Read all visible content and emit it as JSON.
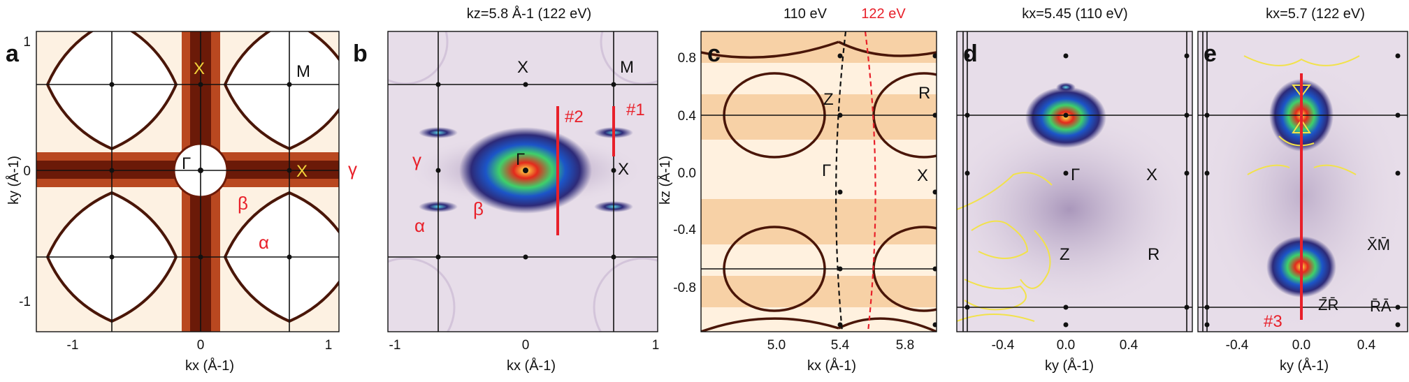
{
  "figure": {
    "panels": [
      {
        "id": "a",
        "letter": "a",
        "title": "",
        "xlabel": "kx (Å-1)",
        "ylabel": "ky (Å-1)",
        "xticks": [
          "-1",
          "0",
          "1"
        ],
        "yticks": [
          "1",
          "0",
          "-1"
        ],
        "labels": [
          "X",
          "M",
          "Γ",
          "X",
          "γ",
          "β",
          "α"
        ]
      },
      {
        "id": "b",
        "letter": "b",
        "title": "kz=5.8 Å-1 (122 eV)",
        "xlabel": "kx (Å-1)",
        "ylabel": "",
        "xticks": [
          "-1",
          "0",
          "1"
        ],
        "labels": [
          "X",
          "M",
          "Γ",
          "X",
          "γ",
          "β",
          "α",
          "#2",
          "#1"
        ]
      },
      {
        "id": "c",
        "letter": "c",
        "title_left": "110 eV",
        "title_right": "122 eV",
        "xlabel": "kx (Å-1)",
        "ylabel": "kz (Å-1)",
        "xticks": [
          "5.0",
          "5.4",
          "5.8"
        ],
        "yticks": [
          "0.8",
          "0.4",
          "0.0",
          "-0.4",
          "-0.8"
        ],
        "labels": [
          "Z",
          "R",
          "Γ",
          "X"
        ]
      },
      {
        "id": "d",
        "letter": "d",
        "title": "kx=5.45 (110 eV)",
        "xlabel": "ky (Å-1)",
        "ylabel": "",
        "xticks": [
          "-0.4",
          "0.0",
          "0.4"
        ],
        "labels": [
          "Γ",
          "X",
          "Z",
          "R"
        ]
      },
      {
        "id": "e",
        "letter": "e",
        "title": "kx=5.7 (122 eV)",
        "xlabel": "ky (Å-1)",
        "ylabel": "",
        "xticks": [
          "-0.4",
          "0.0",
          "0.4"
        ],
        "labels": [
          "X̄M̄",
          "R̄Ā",
          "Z̄R̄",
          "#3"
        ]
      }
    ],
    "colors": {
      "ink": "#111111",
      "accent_red": "#e8202a",
      "yellow": "#f2e24a",
      "fermi_cream": "#fdf1e2",
      "fermi_dark": "#4a1608",
      "arpes_bg": "#e7dde9",
      "arpes_mid": "#2d2a78",
      "arpes_hot": "#e42a1c"
    }
  },
  "chart_data": [
    {
      "panel": "a",
      "type": "heatmap",
      "title": "",
      "xlabel": "kx (Å-1)",
      "ylabel": "ky (Å-1)",
      "xlim": [
        -1.1,
        1.1
      ],
      "ylim": [
        -1.1,
        1.1
      ],
      "grid_x": [
        -0.68,
        0,
        0.68
      ],
      "grid_y": [
        -0.68,
        0,
        0.68
      ],
      "high_symmetry_points": [
        {
          "label": "Γ",
          "x": 0,
          "y": 0
        },
        {
          "label": "X",
          "x": 0,
          "y": 0.68
        },
        {
          "label": "X",
          "x": 0.68,
          "y": 0
        },
        {
          "label": "M",
          "x": 0.68,
          "y": 0.68
        }
      ],
      "bands": [
        "α",
        "β",
        "γ"
      ]
    },
    {
      "panel": "b",
      "type": "heatmap",
      "title": "kz=5.8 Å-1 (122 eV)",
      "xlabel": "kx (Å-1)",
      "xlim": [
        -1.05,
        1.05
      ],
      "ylim": [
        -1.05,
        1.05
      ],
      "grid_x": [
        -0.68,
        0.68
      ],
      "grid_y": [
        -0.68,
        0.68
      ],
      "cuts": [
        {
          "label": "#2",
          "kx": 0.25,
          "ky_range": [
            -0.5,
            0.5
          ]
        },
        {
          "label": "#1",
          "kx": 0.68,
          "ky_range": [
            -0.1,
            0.5
          ]
        }
      ]
    },
    {
      "panel": "c",
      "type": "heatmap",
      "xlabel": "kx (Å-1)",
      "ylabel": "kz (Å-1)",
      "xlim": [
        4.8,
        6.1
      ],
      "ylim": [
        -1.0,
        1.0
      ],
      "xticks": [
        5.0,
        5.4,
        5.8
      ],
      "yticks": [
        0.8,
        0.4,
        0.0,
        -0.4,
        -0.8
      ],
      "grid_x": [
        4.8,
        6.05
      ],
      "grid_y": [
        -0.42,
        0.42
      ],
      "photon_energy_cuts": [
        {
          "label": "110 eV",
          "color": "black",
          "kx_at_kz0": 5.45
        },
        {
          "label": "122 eV",
          "color": "red",
          "kx_at_kz0": 5.67
        }
      ]
    },
    {
      "panel": "d",
      "type": "heatmap",
      "title": "kx=5.45 (110 eV)",
      "xlabel": "ky (Å-1)",
      "xlim": [
        -0.72,
        0.72
      ],
      "ylim": [
        -1.0,
        1.0
      ],
      "xticks": [
        -0.4,
        0.0,
        0.4
      ],
      "grid_y": [
        -0.42,
        0.42
      ]
    },
    {
      "panel": "e",
      "type": "heatmap",
      "title": "kx=5.7 (122 eV)",
      "xlabel": "ky (Å-1)",
      "xlim": [
        -0.72,
        0.72
      ],
      "ylim": [
        -1.0,
        1.0
      ],
      "xticks": [
        -0.4,
        0.0,
        0.4
      ],
      "grid_y": [
        -0.42,
        0.42
      ],
      "cuts": [
        {
          "label": "#3",
          "ky": 0.0,
          "kz_range": [
            -0.75,
            0.72
          ]
        }
      ]
    }
  ]
}
